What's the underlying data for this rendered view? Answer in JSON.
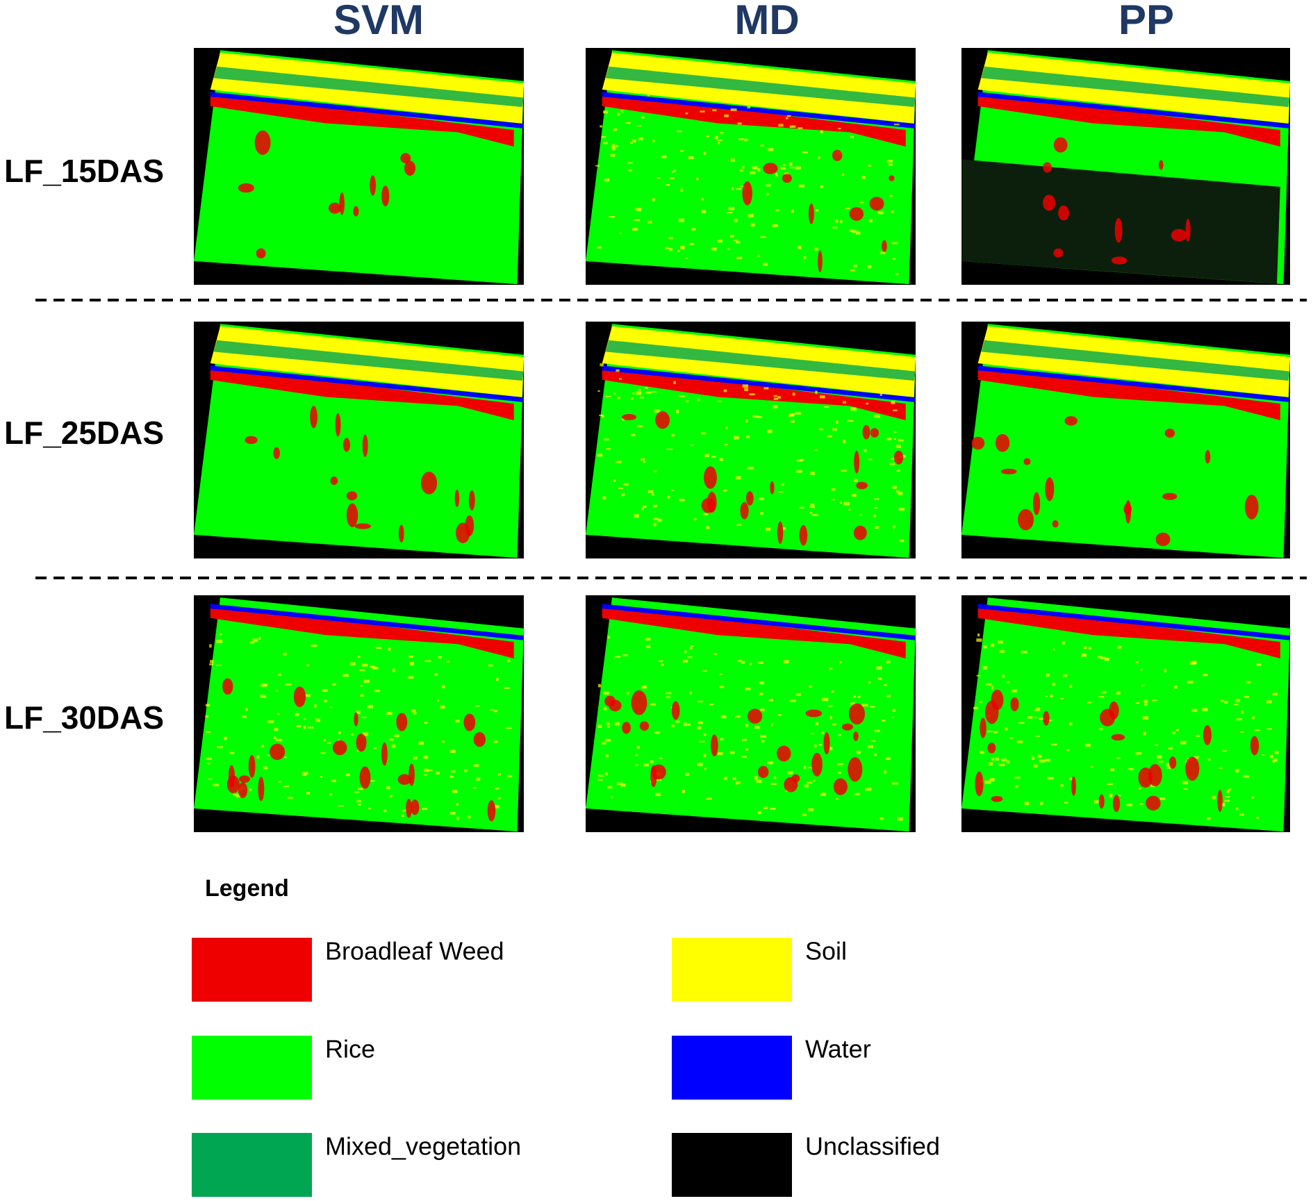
{
  "figure": {
    "columns": [
      "SVM",
      "MD",
      "PP"
    ],
    "rows": [
      "LF_15DAS",
      "LF_25DAS",
      "LF_30DAS"
    ],
    "legend": {
      "title": "Legend",
      "items": [
        {
          "label": "Broadleaf Weed",
          "color": "#ee0000"
        },
        {
          "label": "Soil",
          "color": "#ffff00"
        },
        {
          "label": "Rice",
          "color": "#00ff00"
        },
        {
          "label": "Water",
          "color": "#0000ff"
        },
        {
          "label": "Mixed_vegetation",
          "color": "#00a651"
        },
        {
          "label": "Unclassified",
          "color": "#000000"
        }
      ]
    }
  }
}
